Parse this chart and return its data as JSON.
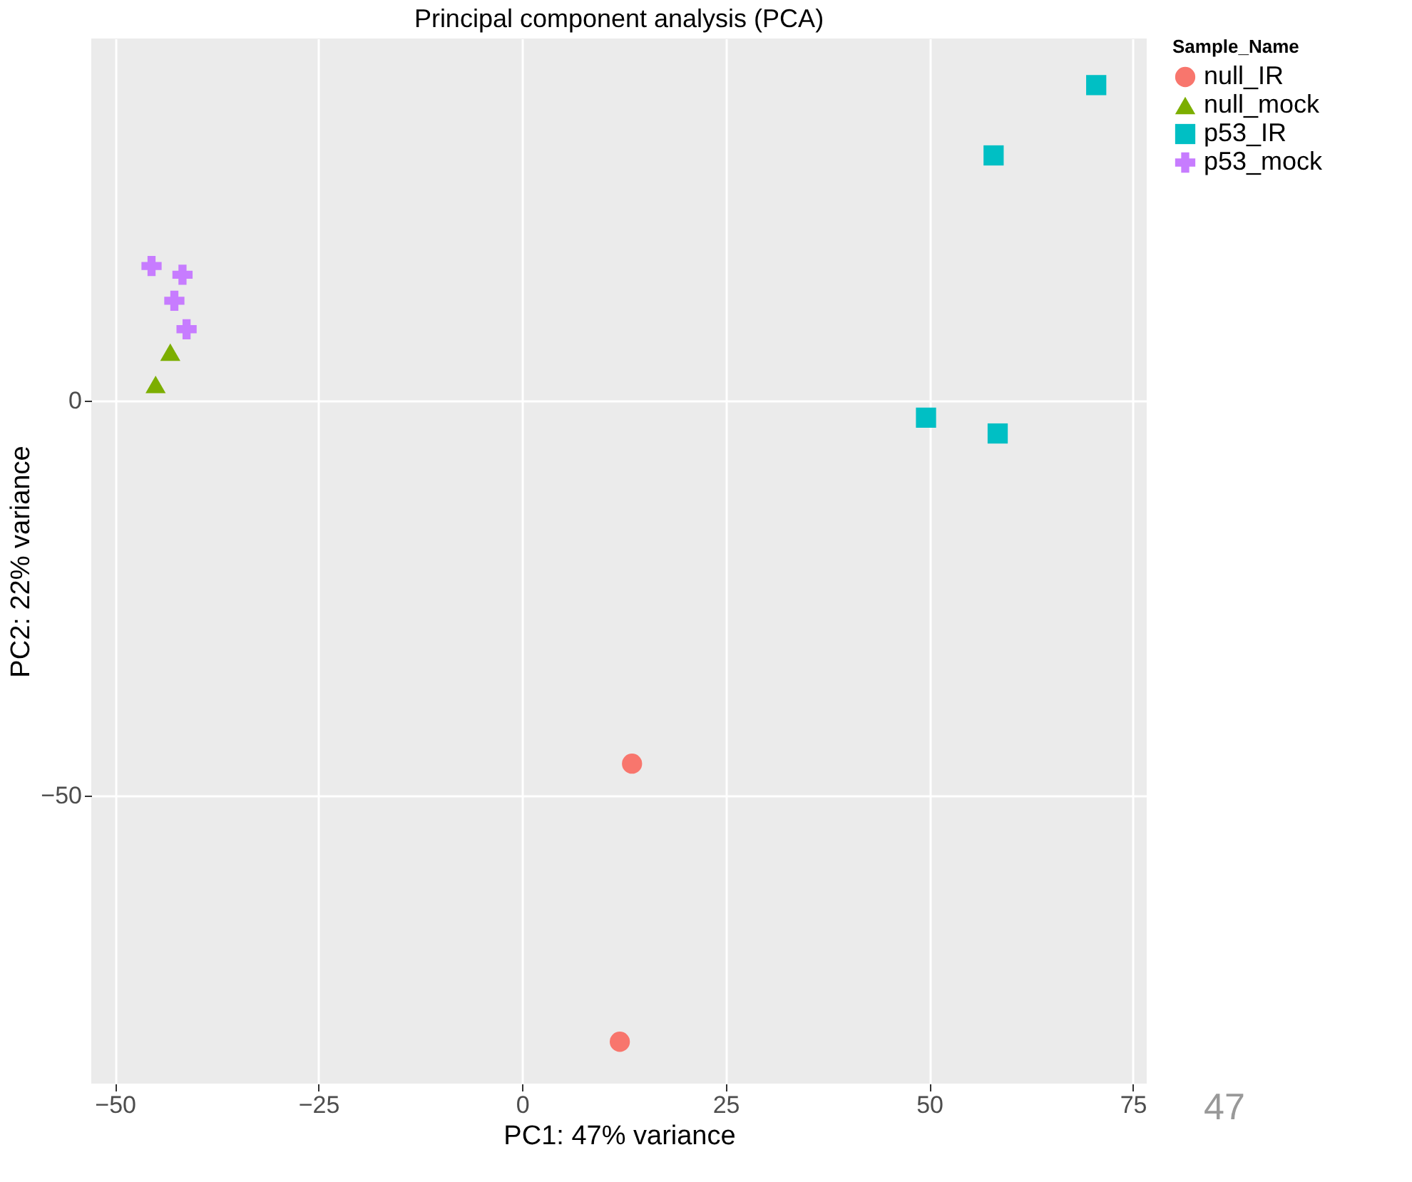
{
  "chart_data": {
    "type": "scatter",
    "title": "Principal component analysis (PCA)",
    "xlabel": "PC1: 47% variance",
    "ylabel": "PC2: 22% variance",
    "legend_title": "Sample_Name",
    "xlim": [
      -52.9,
      76.7
    ],
    "ylim": [
      -86.5,
      45.8
    ],
    "xticks": [
      -50,
      -25,
      0,
      25,
      50,
      75
    ],
    "yticks": [
      -50,
      0
    ],
    "grid": true,
    "legend": "right",
    "series": [
      {
        "name": "null_IR",
        "color": "#f8766d",
        "marker": "circle",
        "x": [
          13.5,
          12.0
        ],
        "values": [
          -46.0,
          -81.2
        ]
      },
      {
        "name": "null_mock",
        "color": "#7cae00",
        "marker": "triangle",
        "x": [
          -43.2,
          -45.0
        ],
        "values": [
          6.1,
          2.0
        ]
      },
      {
        "name": "p53_IR",
        "color": "#00bfc4",
        "marker": "square",
        "x": [
          70.5,
          57.9,
          49.6,
          58.4
        ],
        "values": [
          39.9,
          31.0,
          -2.2,
          -4.2
        ]
      },
      {
        "name": "p53_mock",
        "color": "#c77cff",
        "marker": "cross",
        "x": [
          -45.5,
          -41.7,
          -42.7,
          -41.2
        ],
        "values": [
          17.0,
          15.9,
          12.6,
          9.0
        ]
      }
    ],
    "annotations": [
      "47"
    ]
  }
}
